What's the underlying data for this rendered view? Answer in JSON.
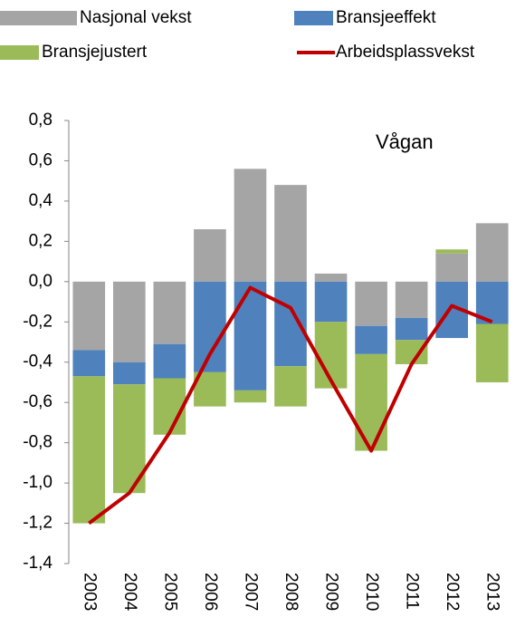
{
  "chart_data": {
    "type": "bar",
    "stacked": true,
    "annotation": "Vågan",
    "categories": [
      "2003",
      "2004",
      "2005",
      "2006",
      "2007",
      "2008",
      "2009",
      "2010",
      "2011",
      "2012",
      "2013"
    ],
    "series": [
      {
        "name": "Nasjonal vekst",
        "color": "#a5a5a5",
        "type": "bar",
        "values": [
          -0.34,
          -0.4,
          -0.31,
          0.26,
          0.56,
          0.48,
          0.04,
          -0.22,
          -0.18,
          0.14,
          0.29
        ]
      },
      {
        "name": "Bransjeeffekt",
        "color": "#4f81bd",
        "type": "bar",
        "values": [
          -0.13,
          -0.11,
          -0.17,
          -0.45,
          -0.54,
          -0.42,
          -0.2,
          -0.14,
          -0.11,
          -0.28,
          -0.21
        ]
      },
      {
        "name": "Bransjejustert",
        "color": "#9bbb59",
        "type": "bar",
        "values": [
          -0.73,
          -0.54,
          -0.28,
          -0.17,
          -0.06,
          -0.2,
          -0.33,
          -0.48,
          -0.12,
          0.02,
          -0.29
        ]
      },
      {
        "name": "Arbeidsplassvekst",
        "color": "#c00000",
        "type": "line",
        "values": [
          -1.2,
          -1.05,
          -0.75,
          -0.36,
          -0.03,
          -0.13,
          -0.49,
          -0.84,
          -0.41,
          -0.12,
          -0.2
        ]
      }
    ],
    "ylim": [
      -1.4,
      0.8
    ],
    "yticks": [
      {
        "value": -1.4,
        "label": "-1,4"
      },
      {
        "value": -1.2,
        "label": "-1,2"
      },
      {
        "value": -1.0,
        "label": "-1,0"
      },
      {
        "value": -0.8,
        "label": "-0,8"
      },
      {
        "value": -0.6,
        "label": "-0,6"
      },
      {
        "value": -0.4,
        "label": "-0,4"
      },
      {
        "value": -0.2,
        "label": "-0,2"
      },
      {
        "value": 0,
        "label": "0,0"
      },
      {
        "value": 0.2,
        "label": "0,2"
      },
      {
        "value": 0.4,
        "label": "0,4"
      },
      {
        "value": 0.6,
        "label": "0,6"
      },
      {
        "value": 0.8,
        "label": "0,8"
      }
    ],
    "grid": false
  }
}
